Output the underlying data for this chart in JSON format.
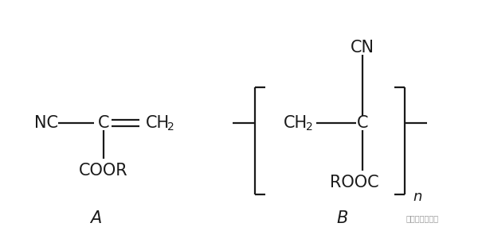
{
  "bg_color": "#ffffff",
  "line_color": "#1a1a1a",
  "text_color": "#1a1a1a",
  "figsize": [
    6.05,
    3.15
  ],
  "dpi": 100,
  "label_A": "A",
  "label_B": "B",
  "watermark": "一起学统计工具"
}
